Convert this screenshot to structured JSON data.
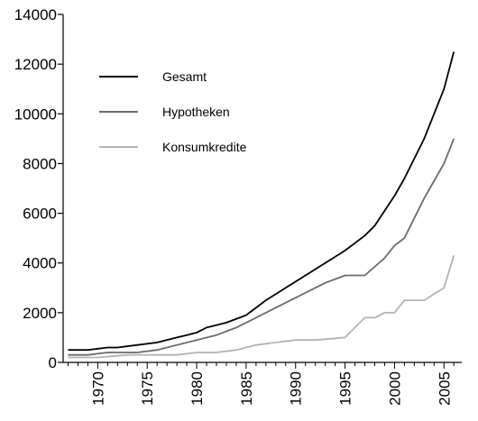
{
  "chart_data": {
    "type": "line",
    "title": "",
    "xlabel": "",
    "ylabel": "",
    "xlim": [
      1966.5,
      2006.8
    ],
    "ylim": [
      0,
      14000
    ],
    "grid": false,
    "legend_position": "top-left",
    "x_ticks": [
      1970,
      1975,
      1980,
      1985,
      1990,
      1995,
      2000,
      2005
    ],
    "y_ticks": [
      0,
      2000,
      4000,
      6000,
      8000,
      10000,
      12000,
      14000
    ],
    "x_tick_labels": [
      "1970",
      "1975",
      "1980",
      "1985",
      "1990",
      "1995",
      "2000",
      "2005"
    ],
    "y_tick_labels": [
      "0",
      "2000",
      "4000",
      "6000",
      "8000",
      "10000",
      "12000",
      "14000"
    ],
    "series": [
      {
        "name": "Gesamt",
        "color": "#000000",
        "x": [
          1967,
          1969,
          1971,
          1972,
          1974,
          1976,
          1978,
          1979,
          1980,
          1981,
          1983,
          1985,
          1987,
          1989,
          1991,
          1993,
          1995,
          1996,
          1997,
          1998,
          2000,
          2001,
          2002,
          2003,
          2004,
          2005,
          2006
        ],
        "values": [
          500,
          500,
          600,
          600,
          700,
          800,
          1000,
          1100,
          1200,
          1400,
          1600,
          1900,
          2500,
          3000,
          3500,
          4000,
          4500,
          4800,
          5100,
          5500,
          6700,
          7400,
          8200,
          9000,
          10000,
          11000,
          12500
        ]
      },
      {
        "name": "Hypotheken",
        "color": "#6b6b6b",
        "x": [
          1967,
          1969,
          1971,
          1974,
          1976,
          1978,
          1980,
          1982,
          1984,
          1986,
          1988,
          1990,
          1991,
          1993,
          1995,
          1997,
          1999,
          2000,
          2001,
          2003,
          2005,
          2006
        ],
        "values": [
          300,
          300,
          400,
          400,
          500,
          700,
          900,
          1100,
          1400,
          1800,
          2200,
          2600,
          2800,
          3200,
          3500,
          3500,
          4200,
          4700,
          5000,
          6600,
          8000,
          9000
        ]
      },
      {
        "name": "Konsumkredite",
        "color": "#b3b3b3",
        "x": [
          1967,
          1970,
          1973,
          1976,
          1978,
          1980,
          1982,
          1984,
          1986,
          1988,
          1990,
          1992,
          1995,
          1997,
          1998,
          1999,
          2000,
          2001,
          2002,
          2003,
          2005,
          2006
        ],
        "values": [
          200,
          200,
          300,
          300,
          300,
          400,
          400,
          500,
          700,
          800,
          900,
          900,
          1000,
          1800,
          1800,
          2000,
          2000,
          2500,
          2500,
          2500,
          3000,
          4300
        ]
      }
    ]
  }
}
